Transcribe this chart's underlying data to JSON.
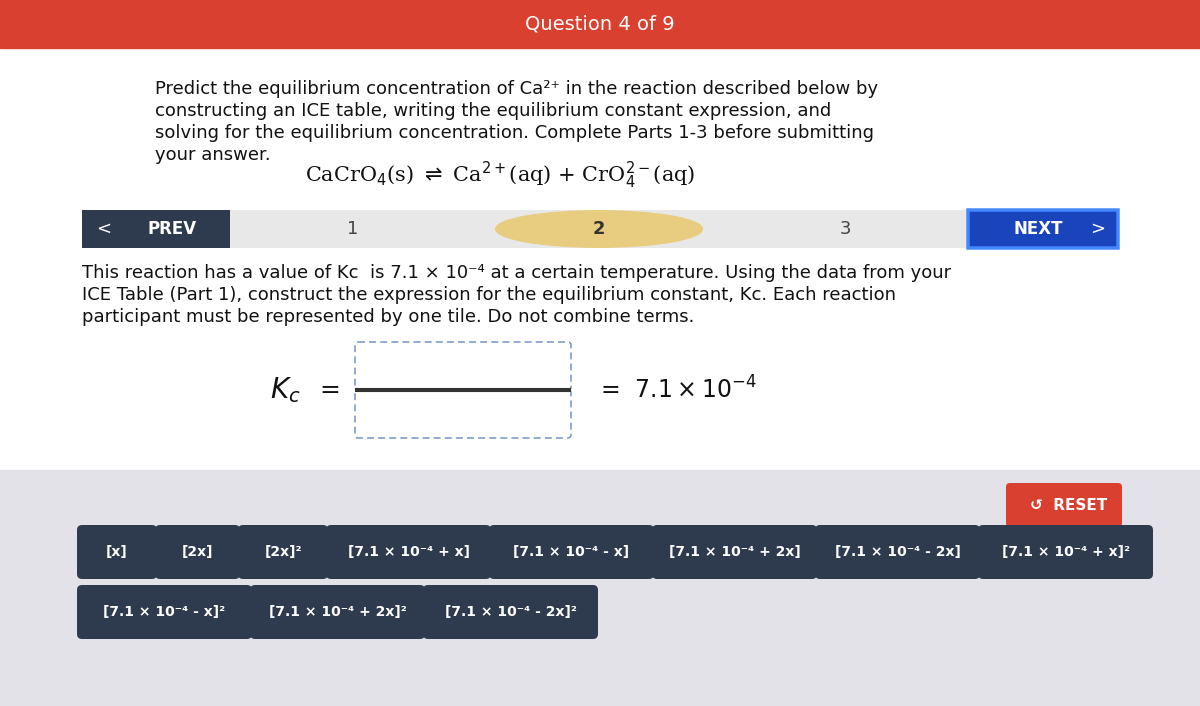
{
  "title": "Question 4 of 9",
  "title_bg": "#D94030",
  "title_color": "#FFFFFF",
  "bg_color": "#FFFFFF",
  "bottom_bg": "#E2E2E8",
  "intro_text_line1": "Predict the equilibrium concentration of Ca²⁺ in the reaction described below by",
  "intro_text_line2": "constructing an ICE table, writing the equilibrium constant expression, and",
  "intro_text_line3": "solving for the equilibrium concentration. Complete Parts 1-3 before submitting",
  "intro_text_line4": "your answer.",
  "reaction_main": "CaCrO",
  "nav_bg": "#2E3A4E",
  "nav_light_bg": "#E8E8E8",
  "nav_active_bg": "#E8CC80",
  "next_btn_bg": "#1A44BB",
  "next_btn_border": "#4488FF",
  "body_text_line1": "This reaction has a value of Kc  is 7.1 × 10⁻⁴ at a certain temperature. Using the data from your",
  "body_text_line2": "ICE Table (Part 1), construct the expression for the equilibrium constant, Kc. Each reaction",
  "body_text_line3": "participant must be represented by one tile. Do not combine terms.",
  "reset_bg": "#D94030",
  "tiles_row1": [
    "[x]",
    "[2x]",
    "[2x]²",
    "[7.1 × 10⁻⁴ + x]",
    "[7.1 × 10⁻⁴ - x]",
    "[7.1 × 10⁻⁴ + 2x]",
    "[7.1 × 10⁻⁴ - 2x]",
    "[7.1 × 10⁻⁴ + x]²"
  ],
  "tiles_row2": [
    "[7.1 × 10⁻⁴ - x]²",
    "[7.1 × 10⁻⁴ + 2x]²",
    "[7.1 × 10⁻⁴ - 2x]²"
  ],
  "tile_bg": "#2E3A4E",
  "tile_color": "#FFFFFF",
  "frac_border": "#6688BB",
  "frac_line": "#333333"
}
